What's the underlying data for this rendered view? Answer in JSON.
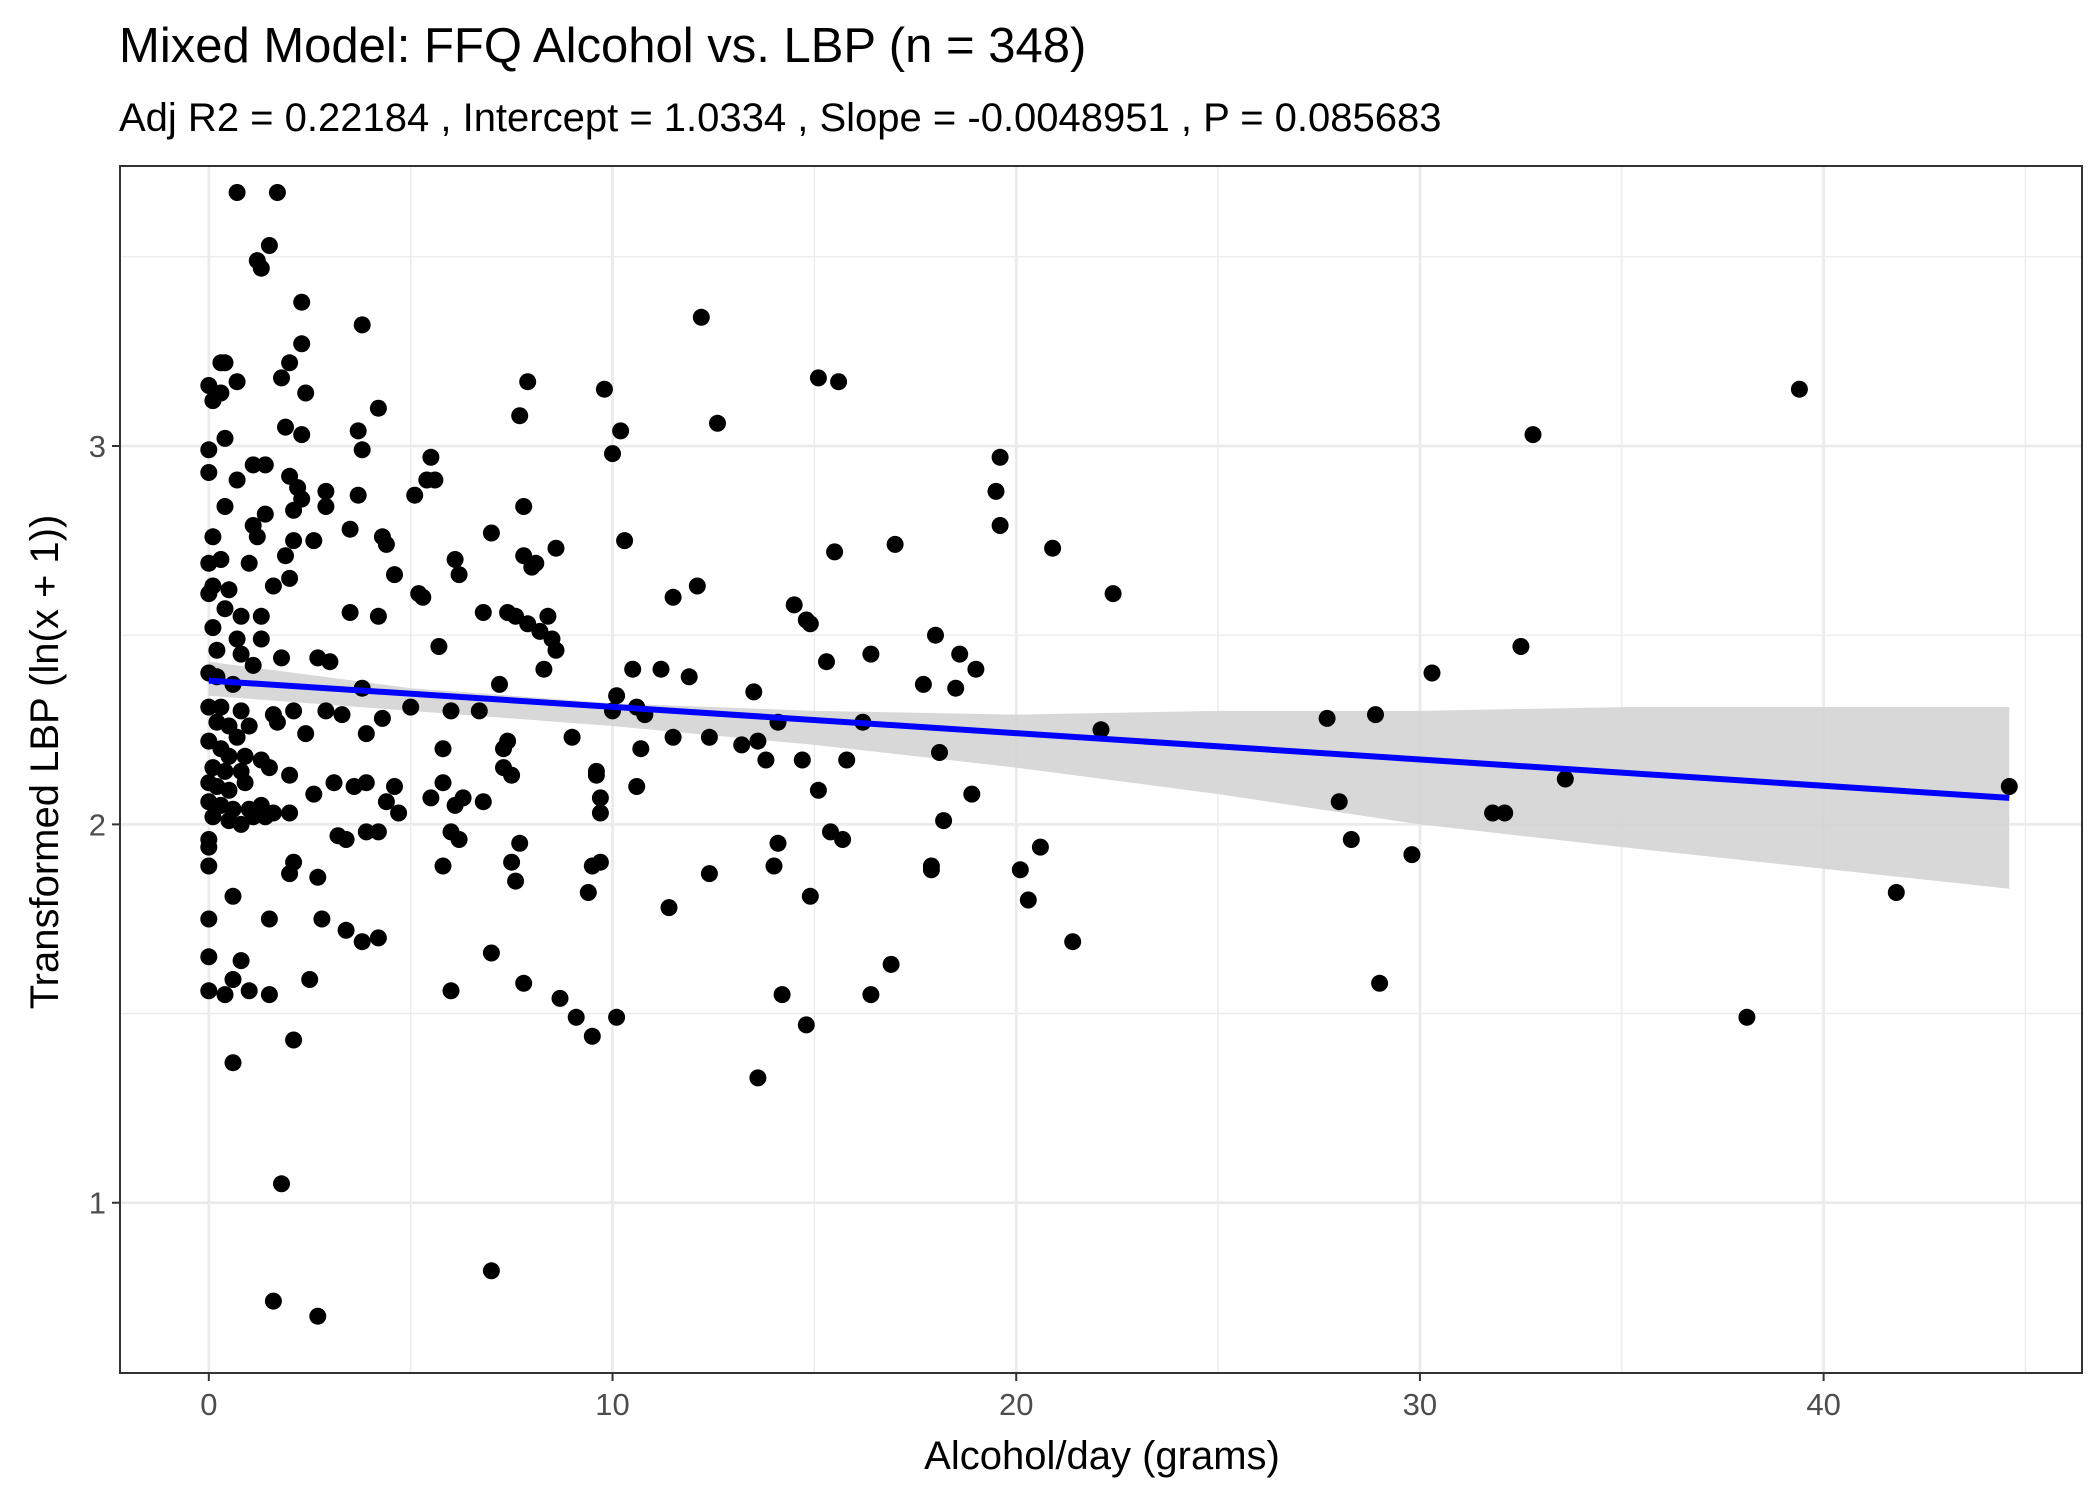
{
  "chart_data": {
    "type": "scatter",
    "title": "Mixed Model: FFQ Alcohol vs. LBP (n = 348)",
    "subtitle": "Adj R2 =  0.22184 , Intercept =  1.0334 , Slope =  -0.0048951 , P =  0.085683",
    "xlabel": "Alcohol/day (grams)",
    "ylabel": "Transformed LBP (ln(x + 1))",
    "xlim": [
      -2.2,
      46.4
    ],
    "ylim": [
      0.55,
      3.74
    ],
    "x_ticks": [
      0,
      10,
      20,
      30,
      40
    ],
    "y_ticks": [
      1,
      2,
      3
    ],
    "grid": true,
    "legend": "none",
    "colors": {
      "points": "#000000",
      "fit_line": "#0000ff",
      "confidence_band": "#d4d4d4"
    },
    "fit_line": {
      "x": [
        0,
        44.6
      ],
      "y": [
        2.38,
        2.07
      ]
    },
    "confidence_band": {
      "x": [
        0,
        5,
        10,
        15,
        20,
        25,
        30,
        35,
        44.6
      ],
      "lower": [
        2.34,
        2.3,
        2.26,
        2.21,
        2.15,
        2.08,
        2.0,
        1.94,
        1.83
      ],
      "upper": [
        2.43,
        2.36,
        2.32,
        2.3,
        2.29,
        2.3,
        2.3,
        2.31,
        2.31
      ]
    },
    "points": [
      [
        0.7,
        3.67
      ],
      [
        1.7,
        3.67
      ],
      [
        1.5,
        3.53
      ],
      [
        1.2,
        3.49
      ],
      [
        1.3,
        3.47
      ],
      [
        2.3,
        3.38
      ],
      [
        3.8,
        3.32
      ],
      [
        2.3,
        3.27
      ],
      [
        0.3,
        3.22
      ],
      [
        0.4,
        3.22
      ],
      [
        2.0,
        3.22
      ],
      [
        1.8,
        3.18
      ],
      [
        0.7,
        3.17
      ],
      [
        0.0,
        3.16
      ],
      [
        0.3,
        3.14
      ],
      [
        0.1,
        3.12
      ],
      [
        2.4,
        3.14
      ],
      [
        4.2,
        3.1
      ],
      [
        1.9,
        3.05
      ],
      [
        3.7,
        3.04
      ],
      [
        2.3,
        3.03
      ],
      [
        0.4,
        3.02
      ],
      [
        0.0,
        2.99
      ],
      [
        3.8,
        2.99
      ],
      [
        0.0,
        2.93
      ],
      [
        0.7,
        2.91
      ],
      [
        1.1,
        2.95
      ],
      [
        1.4,
        2.95
      ],
      [
        2.0,
        2.92
      ],
      [
        2.2,
        2.89
      ],
      [
        2.9,
        2.88
      ],
      [
        2.3,
        2.86
      ],
      [
        3.7,
        2.87
      ],
      [
        0.4,
        2.84
      ],
      [
        2.1,
        2.83
      ],
      [
        2.9,
        2.84
      ],
      [
        1.4,
        2.82
      ],
      [
        1.1,
        2.79
      ],
      [
        1.2,
        2.76
      ],
      [
        2.1,
        2.75
      ],
      [
        2.6,
        2.75
      ],
      [
        3.5,
        2.78
      ],
      [
        0.1,
        2.76
      ],
      [
        1.9,
        2.71
      ],
      [
        4.3,
        2.76
      ],
      [
        4.4,
        2.74
      ],
      [
        0.0,
        2.69
      ],
      [
        0.3,
        2.7
      ],
      [
        1.0,
        2.69
      ],
      [
        2.0,
        2.65
      ],
      [
        0.1,
        2.63
      ],
      [
        0.5,
        2.62
      ],
      [
        4.6,
        2.66
      ],
      [
        1.6,
        2.63
      ],
      [
        0.0,
        2.61
      ],
      [
        0.4,
        2.57
      ],
      [
        0.8,
        2.55
      ],
      [
        1.3,
        2.55
      ],
      [
        3.5,
        2.56
      ],
      [
        4.2,
        2.55
      ],
      [
        0.1,
        2.52
      ],
      [
        0.7,
        2.49
      ],
      [
        1.3,
        2.49
      ],
      [
        0.2,
        2.46
      ],
      [
        0.8,
        2.45
      ],
      [
        1.8,
        2.44
      ],
      [
        2.7,
        2.44
      ],
      [
        3.0,
        2.43
      ],
      [
        1.1,
        2.42
      ],
      [
        0.0,
        2.4
      ],
      [
        0.2,
        2.39
      ],
      [
        0.6,
        2.37
      ],
      [
        3.8,
        2.36
      ],
      [
        0.0,
        2.31
      ],
      [
        0.3,
        2.31
      ],
      [
        0.8,
        2.3
      ],
      [
        1.6,
        2.29
      ],
      [
        2.1,
        2.3
      ],
      [
        2.9,
        2.3
      ],
      [
        3.3,
        2.29
      ],
      [
        0.2,
        2.27
      ],
      [
        0.5,
        2.26
      ],
      [
        0.7,
        2.23
      ],
      [
        1.0,
        2.26
      ],
      [
        1.7,
        2.27
      ],
      [
        2.4,
        2.24
      ],
      [
        3.9,
        2.24
      ],
      [
        4.3,
        2.28
      ],
      [
        0.0,
        2.22
      ],
      [
        0.3,
        2.2
      ],
      [
        0.5,
        2.18
      ],
      [
        0.9,
        2.18
      ],
      [
        1.3,
        2.17
      ],
      [
        0.1,
        2.15
      ],
      [
        0.4,
        2.14
      ],
      [
        0.8,
        2.14
      ],
      [
        1.5,
        2.15
      ],
      [
        2.0,
        2.13
      ],
      [
        0.0,
        2.11
      ],
      [
        0.2,
        2.1
      ],
      [
        0.5,
        2.09
      ],
      [
        0.9,
        2.11
      ],
      [
        3.1,
        2.11
      ],
      [
        3.6,
        2.1
      ],
      [
        3.9,
        2.11
      ],
      [
        2.6,
        2.08
      ],
      [
        4.4,
        2.06
      ],
      [
        4.6,
        2.1
      ],
      [
        0.0,
        2.06
      ],
      [
        0.3,
        2.05
      ],
      [
        0.6,
        2.04
      ],
      [
        1.0,
        2.04
      ],
      [
        1.3,
        2.05
      ],
      [
        1.6,
        2.03
      ],
      [
        2.0,
        2.03
      ],
      [
        0.1,
        2.02
      ],
      [
        0.5,
        2.01
      ],
      [
        0.8,
        2.0
      ],
      [
        1.1,
        2.02
      ],
      [
        1.4,
        2.02
      ],
      [
        4.7,
        2.03
      ],
      [
        0.0,
        1.96
      ],
      [
        0.0,
        1.94
      ],
      [
        0.0,
        1.89
      ],
      [
        0.0,
        1.75
      ],
      [
        0.0,
        1.65
      ],
      [
        0.0,
        1.56
      ],
      [
        0.6,
        1.81
      ],
      [
        1.5,
        1.75
      ],
      [
        2.0,
        1.87
      ],
      [
        2.1,
        1.9
      ],
      [
        2.7,
        1.86
      ],
      [
        2.8,
        1.75
      ],
      [
        3.4,
        1.72
      ],
      [
        3.8,
        1.69
      ],
      [
        4.2,
        1.7
      ],
      [
        3.2,
        1.97
      ],
      [
        3.4,
        1.96
      ],
      [
        3.9,
        1.98
      ],
      [
        4.2,
        1.98
      ],
      [
        0.8,
        1.64
      ],
      [
        0.6,
        1.59
      ],
      [
        0.4,
        1.55
      ],
      [
        1.0,
        1.56
      ],
      [
        1.5,
        1.55
      ],
      [
        2.5,
        1.59
      ],
      [
        2.1,
        1.43
      ],
      [
        0.6,
        1.37
      ],
      [
        1.8,
        1.05
      ],
      [
        1.6,
        0.74
      ],
      [
        2.7,
        0.7
      ],
      [
        5.2,
        2.61
      ],
      [
        5.3,
        2.6
      ],
      [
        5.4,
        2.91
      ],
      [
        5.6,
        2.91
      ],
      [
        5.5,
        2.97
      ],
      [
        5.1,
        2.87
      ],
      [
        5.0,
        2.31
      ],
      [
        5.7,
        2.47
      ],
      [
        5.8,
        2.2
      ],
      [
        5.8,
        2.11
      ],
      [
        5.5,
        2.07
      ],
      [
        5.8,
        1.89
      ],
      [
        6.0,
        2.3
      ],
      [
        6.1,
        2.05
      ],
      [
        6.3,
        2.07
      ],
      [
        6.0,
        1.98
      ],
      [
        6.2,
        1.96
      ],
      [
        6.0,
        1.56
      ],
      [
        6.1,
        2.7
      ],
      [
        6.2,
        2.66
      ],
      [
        6.8,
        2.06
      ],
      [
        6.7,
        2.3
      ],
      [
        6.8,
        2.56
      ],
      [
        7.0,
        2.77
      ],
      [
        7.2,
        2.37
      ],
      [
        7.3,
        2.2
      ],
      [
        7.3,
        2.15
      ],
      [
        7.5,
        2.13
      ],
      [
        7.4,
        2.22
      ],
      [
        7.4,
        2.56
      ],
      [
        7.6,
        2.55
      ],
      [
        7.5,
        1.9
      ],
      [
        7.6,
        1.85
      ],
      [
        7.7,
        1.95
      ],
      [
        7.7,
        3.08
      ],
      [
        7.9,
        3.17
      ],
      [
        7.8,
        2.84
      ],
      [
        7.8,
        2.71
      ],
      [
        8.0,
        2.68
      ],
      [
        8.1,
        2.69
      ],
      [
        7.9,
        2.53
      ],
      [
        7.8,
        1.58
      ],
      [
        7.0,
        1.66
      ],
      [
        7.0,
        0.82
      ],
      [
        8.2,
        2.51
      ],
      [
        8.4,
        2.55
      ],
      [
        8.5,
        2.49
      ],
      [
        8.3,
        2.41
      ],
      [
        8.6,
        2.46
      ],
      [
        8.6,
        2.73
      ],
      [
        8.7,
        1.54
      ],
      [
        9.0,
        2.23
      ],
      [
        9.1,
        1.49
      ],
      [
        9.4,
        1.82
      ],
      [
        9.5,
        1.89
      ],
      [
        9.5,
        1.44
      ],
      [
        9.6,
        2.13
      ],
      [
        9.6,
        2.14
      ],
      [
        9.7,
        2.07
      ],
      [
        9.7,
        2.03
      ],
      [
        9.7,
        1.9
      ],
      [
        9.8,
        3.15
      ],
      [
        10.0,
        2.98
      ],
      [
        10.1,
        2.34
      ],
      [
        10.0,
        2.3
      ],
      [
        10.1,
        1.49
      ],
      [
        10.2,
        3.04
      ],
      [
        10.3,
        2.75
      ],
      [
        10.5,
        2.41
      ],
      [
        10.6,
        2.31
      ],
      [
        10.7,
        2.2
      ],
      [
        10.6,
        2.1
      ],
      [
        10.8,
        2.29
      ],
      [
        11.2,
        2.41
      ],
      [
        11.4,
        1.78
      ],
      [
        11.5,
        2.6
      ],
      [
        11.5,
        2.23
      ],
      [
        11.9,
        2.39
      ],
      [
        12.1,
        2.63
      ],
      [
        12.2,
        3.34
      ],
      [
        12.4,
        1.87
      ],
      [
        12.4,
        2.23
      ],
      [
        12.6,
        3.06
      ],
      [
        13.2,
        2.21
      ],
      [
        13.5,
        2.35
      ],
      [
        13.6,
        1.33
      ],
      [
        13.6,
        2.22
      ],
      [
        13.8,
        2.17
      ],
      [
        14.0,
        1.89
      ],
      [
        14.1,
        1.95
      ],
      [
        14.1,
        2.27
      ],
      [
        14.2,
        1.55
      ],
      [
        14.5,
        2.58
      ],
      [
        14.8,
        2.54
      ],
      [
        14.7,
        2.17
      ],
      [
        14.8,
        1.47
      ],
      [
        14.9,
        1.81
      ],
      [
        14.9,
        2.53
      ],
      [
        15.1,
        3.18
      ],
      [
        15.1,
        2.09
      ],
      [
        15.3,
        2.43
      ],
      [
        15.4,
        1.98
      ],
      [
        15.5,
        2.72
      ],
      [
        15.6,
        3.17
      ],
      [
        15.7,
        1.96
      ],
      [
        15.8,
        2.17
      ],
      [
        16.2,
        2.27
      ],
      [
        16.4,
        2.45
      ],
      [
        16.4,
        1.55
      ],
      [
        16.9,
        1.63
      ],
      [
        17.0,
        2.74
      ],
      [
        17.7,
        2.37
      ],
      [
        17.9,
        1.88
      ],
      [
        17.9,
        1.89
      ],
      [
        18.0,
        2.5
      ],
      [
        18.1,
        2.19
      ],
      [
        18.2,
        2.01
      ],
      [
        18.5,
        2.36
      ],
      [
        18.6,
        2.45
      ],
      [
        18.9,
        2.08
      ],
      [
        19.0,
        2.41
      ],
      [
        19.5,
        2.88
      ],
      [
        19.6,
        2.97
      ],
      [
        19.6,
        2.79
      ],
      [
        20.1,
        1.88
      ],
      [
        20.3,
        1.8
      ],
      [
        20.6,
        1.94
      ],
      [
        20.9,
        2.73
      ],
      [
        21.4,
        1.69
      ],
      [
        22.1,
        2.25
      ],
      [
        22.4,
        2.61
      ],
      [
        27.7,
        2.28
      ],
      [
        28.0,
        2.06
      ],
      [
        28.3,
        1.96
      ],
      [
        28.9,
        2.29
      ],
      [
        29.0,
        1.58
      ],
      [
        29.8,
        1.92
      ],
      [
        30.3,
        2.4
      ],
      [
        31.8,
        2.03
      ],
      [
        32.1,
        2.03
      ],
      [
        32.5,
        2.47
      ],
      [
        32.8,
        3.03
      ],
      [
        33.6,
        2.12
      ],
      [
        38.1,
        1.49
      ],
      [
        39.4,
        3.15
      ],
      [
        41.8,
        1.82
      ],
      [
        44.6,
        2.1
      ]
    ]
  }
}
